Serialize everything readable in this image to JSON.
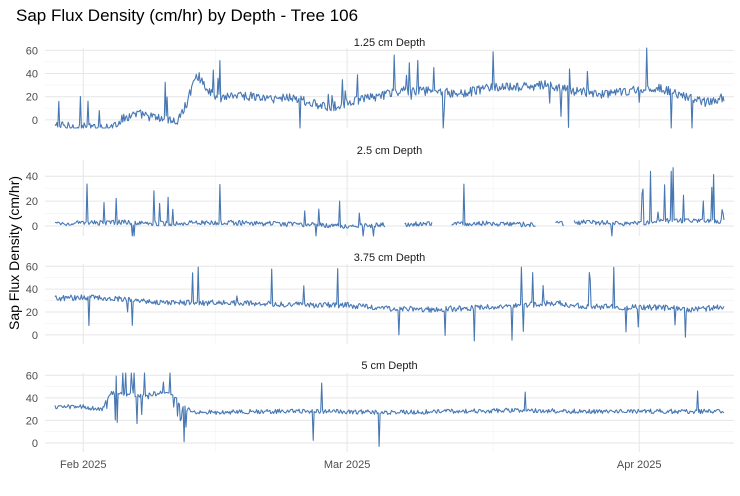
{
  "chart_data": {
    "type": "line",
    "title": "Sap Flux Density (cm/hr) by Depth - Tree 106",
    "ylabel": "Sap Flux Density (cm/hr)",
    "xlabel": "",
    "x_range": [
      "2025-01-29",
      "2025-04-10"
    ],
    "x_ticks": [
      {
        "date": "2025-02-01",
        "label": "Feb 2025"
      },
      {
        "date": "2025-03-01",
        "label": "Mar 2025"
      },
      {
        "date": "2025-04-01",
        "label": "Apr 2025"
      }
    ],
    "grid": true,
    "legend": "none",
    "line_color": "#4878b4",
    "facets": [
      {
        "title": "1.25 cm Depth",
        "ylim": [
          -7,
          62
        ],
        "yticks": [
          0,
          20,
          40,
          60
        ],
        "gaps": [],
        "points": [
          [
            "2025-01-29",
            -5
          ],
          [
            "2025-01-31",
            -6
          ],
          [
            "2025-02-02",
            -7
          ],
          [
            "2025-02-04",
            -6
          ],
          [
            "2025-02-05",
            0
          ],
          [
            "2025-02-06",
            4
          ],
          [
            "2025-02-07",
            5
          ],
          [
            "2025-02-08",
            3
          ],
          [
            "2025-02-10",
            0
          ],
          [
            "2025-02-11",
            -2
          ],
          [
            "2025-02-12",
            15
          ],
          [
            "2025-02-13",
            40
          ],
          [
            "2025-02-15",
            18
          ],
          [
            "2025-02-17",
            22
          ],
          [
            "2025-02-19",
            20
          ],
          [
            "2025-02-21",
            18
          ],
          [
            "2025-02-23",
            20
          ],
          [
            "2025-02-25",
            15
          ],
          [
            "2025-02-27",
            10
          ],
          [
            "2025-03-01",
            15
          ],
          [
            "2025-03-04",
            20
          ],
          [
            "2025-03-07",
            25
          ],
          [
            "2025-03-10",
            25
          ],
          [
            "2025-03-13",
            22
          ],
          [
            "2025-03-16",
            28
          ],
          [
            "2025-03-19",
            28
          ],
          [
            "2025-03-22",
            30
          ],
          [
            "2025-03-25",
            25
          ],
          [
            "2025-03-28",
            22
          ],
          [
            "2025-03-31",
            25
          ],
          [
            "2025-04-03",
            28
          ],
          [
            "2025-04-06",
            20
          ],
          [
            "2025-04-08",
            15
          ],
          [
            "2025-04-10",
            20
          ]
        ]
      },
      {
        "title": "2.5 cm Depth",
        "ylim": [
          -8,
          53
        ],
        "yticks": [
          0,
          20,
          40
        ],
        "gaps": [
          [
            "2025-03-05",
            "2025-03-07"
          ],
          [
            "2025-03-10",
            "2025-03-12"
          ],
          [
            "2025-03-21",
            "2025-03-23"
          ],
          [
            "2025-03-24",
            "2025-03-25"
          ]
        ],
        "points": [
          [
            "2025-01-29",
            2
          ],
          [
            "2025-02-05",
            3
          ],
          [
            "2025-02-10",
            2
          ],
          [
            "2025-02-15",
            3
          ],
          [
            "2025-02-20",
            2
          ],
          [
            "2025-02-25",
            1
          ],
          [
            "2025-03-01",
            0
          ],
          [
            "2025-03-06",
            1
          ],
          [
            "2025-03-11",
            2
          ],
          [
            "2025-03-16",
            2
          ],
          [
            "2025-03-21",
            1
          ],
          [
            "2025-03-26",
            3
          ],
          [
            "2025-03-31",
            2
          ],
          [
            "2025-04-04",
            4
          ],
          [
            "2025-04-07",
            5
          ],
          [
            "2025-04-10",
            3
          ]
        ]
      },
      {
        "title": "3.75 cm Depth",
        "ylim": [
          -8,
          62
        ],
        "yticks": [
          0,
          20,
          40,
          60
        ],
        "gaps": [],
        "points": [
          [
            "2025-01-29",
            32
          ],
          [
            "2025-02-02",
            33
          ],
          [
            "2025-02-06",
            31
          ],
          [
            "2025-02-10",
            28
          ],
          [
            "2025-02-14",
            28
          ],
          [
            "2025-02-18",
            28
          ],
          [
            "2025-02-22",
            27
          ],
          [
            "2025-02-26",
            26
          ],
          [
            "2025-03-01",
            26
          ],
          [
            "2025-03-05",
            23
          ],
          [
            "2025-03-10",
            22
          ],
          [
            "2025-03-15",
            24
          ],
          [
            "2025-03-20",
            26
          ],
          [
            "2025-03-23",
            28
          ],
          [
            "2025-03-26",
            25
          ],
          [
            "2025-03-30",
            24
          ],
          [
            "2025-04-03",
            24
          ],
          [
            "2025-04-07",
            22
          ],
          [
            "2025-04-10",
            25
          ]
        ]
      },
      {
        "title": "5 cm Depth",
        "ylim": [
          -8,
          62
        ],
        "yticks": [
          0,
          20,
          40,
          60
        ],
        "gaps": [],
        "points": [
          [
            "2025-01-29",
            32
          ],
          [
            "2025-02-01",
            32
          ],
          [
            "2025-02-03",
            30
          ],
          [
            "2025-02-04",
            45
          ],
          [
            "2025-02-07",
            42
          ],
          [
            "2025-02-10",
            45
          ],
          [
            "2025-02-12",
            30
          ],
          [
            "2025-02-13",
            27
          ],
          [
            "2025-02-20",
            28
          ],
          [
            "2025-02-27",
            28
          ],
          [
            "2025-03-05",
            27
          ],
          [
            "2025-03-12",
            28
          ],
          [
            "2025-03-19",
            29
          ],
          [
            "2025-03-26",
            28
          ],
          [
            "2025-04-02",
            28
          ],
          [
            "2025-04-10",
            28
          ]
        ]
      }
    ]
  }
}
